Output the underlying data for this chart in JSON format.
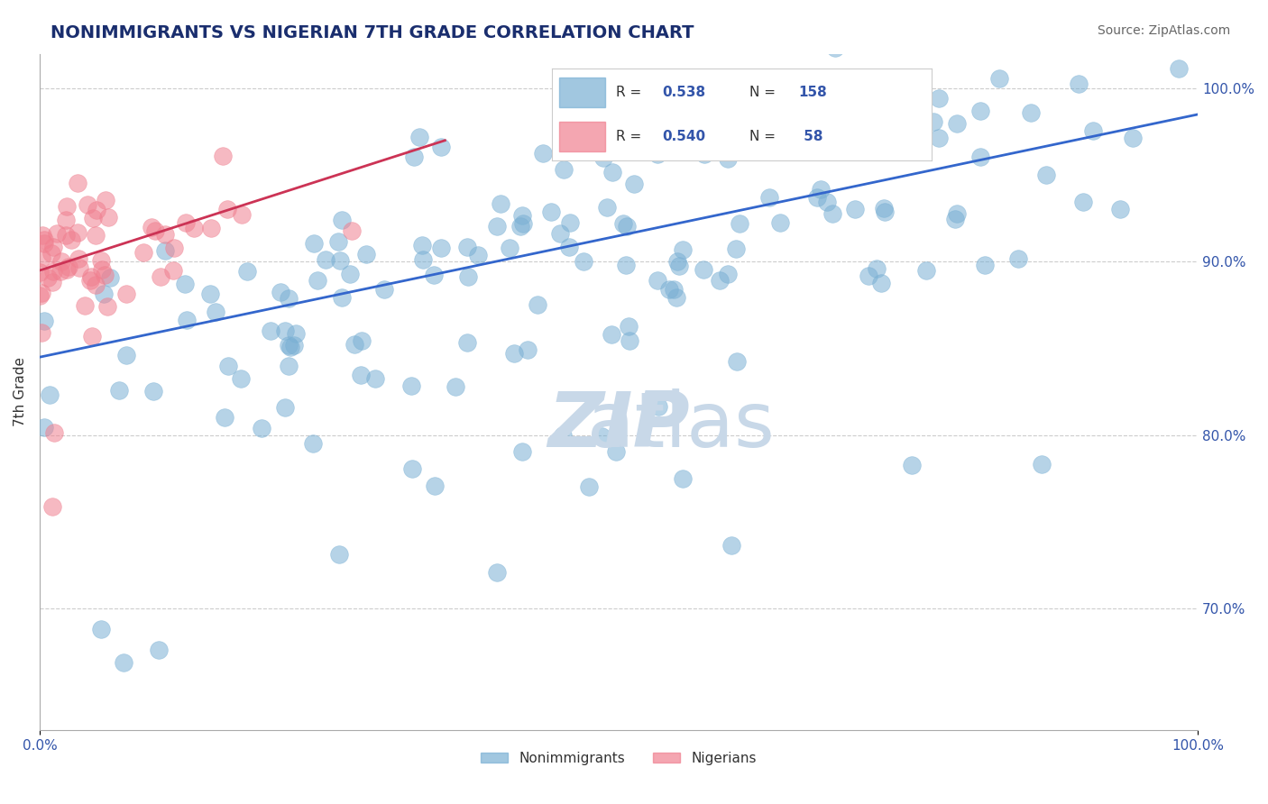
{
  "title": "NONIMMIGRANTS VS NIGERIAN 7TH GRADE CORRELATION CHART",
  "source_text": "Source: ZipAtlas.com",
  "xlabel": "",
  "ylabel": "7th Grade",
  "xlim": [
    0.0,
    1.0
  ],
  "ylim": [
    0.63,
    1.02
  ],
  "x_tick_labels": [
    "0.0%",
    "100.0%"
  ],
  "y_tick_labels_right": [
    "70.0%",
    "80.0%",
    "90.0%",
    "100.0%"
  ],
  "y_tick_vals_right": [
    0.7,
    0.8,
    0.9,
    1.0
  ],
  "legend_bottom": [
    "Nonimmigrants",
    "Nigerians"
  ],
  "legend_top": [
    {
      "label": "R = 0.538   N = 158",
      "color": "#6699cc"
    },
    {
      "label": "R = 0.540   N =  58",
      "color": "#ff99aa"
    }
  ],
  "blue_color": "#7ab0d4",
  "pink_color": "#f08090",
  "blue_line_color": "#3366cc",
  "pink_line_color": "#cc3355",
  "background_color": "#ffffff",
  "watermark_text": "ZIPatlas",
  "watermark_color": "#c8d8e8",
  "grid_color": "#cccccc",
  "title_color": "#1a2e6e",
  "source_color": "#666666",
  "axis_label_color": "#333333",
  "tick_label_color": "#3355aa",
  "R_nonimm": 0.538,
  "N_nonimm": 158,
  "R_nigerian": 0.54,
  "N_nigerian": 58,
  "blue_scatter_seed": 42,
  "pink_scatter_seed": 7,
  "blue_line_x": [
    0.0,
    1.0
  ],
  "blue_line_y": [
    0.845,
    0.985
  ],
  "pink_line_x": [
    0.0,
    0.35
  ],
  "pink_line_y": [
    0.895,
    0.97
  ]
}
